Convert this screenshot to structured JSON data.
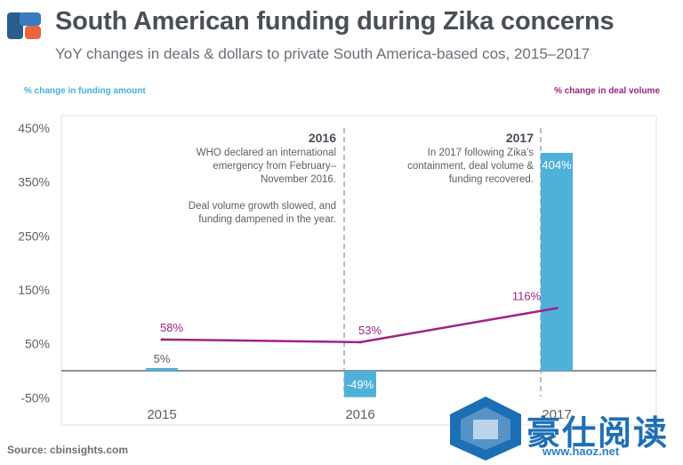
{
  "header": {
    "title": "South American funding during Zika concerns",
    "subtitle": "YoY changes in deals & dollars to private South America-based cos, 2015–2017"
  },
  "legend": {
    "funding_label": "% change in funding amount",
    "deals_label": "% change in deal volume"
  },
  "source": "Source: cbinsights.com",
  "colors": {
    "bar": "#4fb1da",
    "line": "#a0237e",
    "title": "#4a4e58",
    "dashed": "#9a9a9a"
  },
  "annotations": [
    {
      "year": "2016",
      "text": [
        "WHO declared an international",
        "emergency from February–",
        "November 2016.",
        "",
        "Deal volume growth slowed, and",
        "funding dampened in the year."
      ]
    },
    {
      "year": "2017",
      "text": [
        "In 2017 following Zika’s",
        "containment, deal volume &",
        "funding recovered."
      ]
    }
  ],
  "watermark": {
    "text": "豪仕阅读",
    "url": "www.haoz.net",
    "overlay": "CB INSIGHTS"
  },
  "chart_data": {
    "type": "bar",
    "categories": [
      "2015",
      "2016",
      "2017"
    ],
    "series": [
      {
        "name": "% change in funding amount",
        "type": "bar",
        "values": [
          5,
          -49,
          404
        ],
        "labels": [
          "5%",
          "-49%",
          "404%"
        ]
      },
      {
        "name": "% change in deal volume",
        "type": "line",
        "values": [
          58,
          53,
          116
        ],
        "labels": [
          "58%",
          "53%",
          "116%"
        ]
      }
    ],
    "yticks": [
      450,
      350,
      250,
      150,
      50,
      -50
    ],
    "ytick_labels": [
      "450%",
      "350%",
      "250%",
      "150%",
      "50%",
      "-50%"
    ],
    "ylim": [
      -50,
      450
    ],
    "xlabel": "",
    "ylabel": "",
    "grid": false
  }
}
